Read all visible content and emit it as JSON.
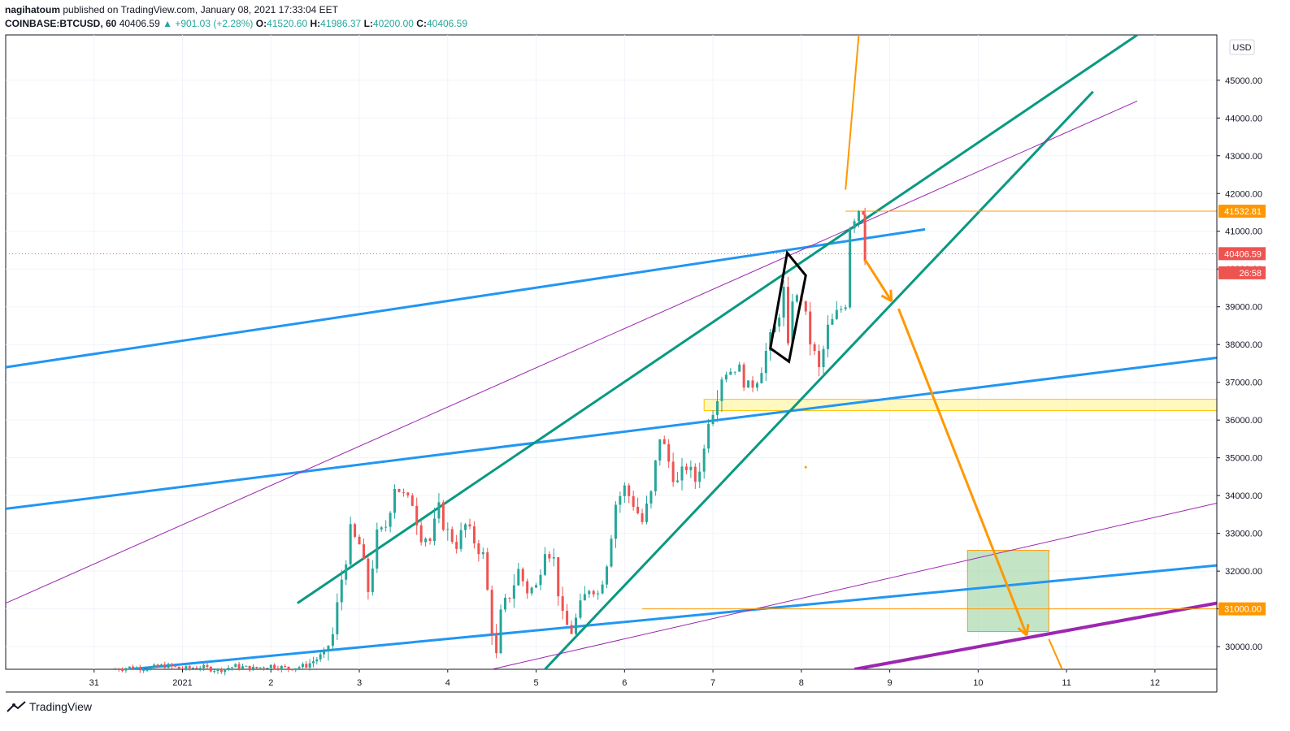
{
  "header": {
    "author": "nagihatoum",
    "published_text": "published on TradingView.com, January 08, 2021 17:33:04 EET",
    "symbol": "COINBASE:BTCUSD, 60",
    "last": "40406.59",
    "change": "▲ +901.03 (+2.28%)",
    "o_label": "O:",
    "o_value": "41520.60",
    "h_label": "H:",
    "h_value": "41986.37",
    "l_label": "L:",
    "l_value": "40200.00",
    "c_label": "C:",
    "c_value": "40406.59"
  },
  "footer": {
    "brand": "TradingView"
  },
  "colors": {
    "up": "#26a69a",
    "down": "#ef5350",
    "blue": "#2196f3",
    "teal": "#089981",
    "purple": "#9c27b0",
    "orange": "#ff9800",
    "zone_yellow": "#fff59d",
    "zone_green": "#a5d6a7"
  },
  "chart_data": {
    "type": "candlestick",
    "currency_label": "USD",
    "ylim": [
      29400,
      46200
    ],
    "yticks": [
      "30000.00",
      "31000.00",
      "32000.00",
      "33000.00",
      "34000.00",
      "35000.00",
      "36000.00",
      "37000.00",
      "38000.00",
      "39000.00",
      "40000.00",
      "41000.00",
      "42000.00",
      "43000.00",
      "44000.00",
      "45000.00"
    ],
    "xlim": [
      30.0,
      43.7
    ],
    "xticks": [
      {
        "x": 31,
        "label": "31"
      },
      {
        "x": 32,
        "label": "2021"
      },
      {
        "x": 33,
        "label": "2"
      },
      {
        "x": 34,
        "label": "3"
      },
      {
        "x": 35,
        "label": "4"
      },
      {
        "x": 36,
        "label": "5"
      },
      {
        "x": 37,
        "label": "6"
      },
      {
        "x": 38,
        "label": "7"
      },
      {
        "x": 39,
        "label": "8"
      },
      {
        "x": 40,
        "label": "9"
      },
      {
        "x": 41,
        "label": "10"
      },
      {
        "x": 42,
        "label": "11"
      },
      {
        "x": 43,
        "label": "12"
      }
    ],
    "price_badges": [
      {
        "label": "41532.81",
        "value": 41532.81,
        "color": "#ff9800"
      },
      {
        "label": "40406.59",
        "value": 40406.59,
        "color": "#ef5350"
      },
      {
        "label": "26:58",
        "value": 39900,
        "color": "#ef5350"
      },
      {
        "label": "31000.00",
        "value": 31000,
        "color": "#ff9800"
      }
    ],
    "last_price": 40406.59,
    "anchors": [
      {
        "x": 31.2,
        "y": 29390
      },
      {
        "x": 31.4,
        "y": 29450
      },
      {
        "x": 31.6,
        "y": 29420
      },
      {
        "x": 31.8,
        "y": 29500
      },
      {
        "x": 32.0,
        "y": 29410
      },
      {
        "x": 32.2,
        "y": 29460
      },
      {
        "x": 32.4,
        "y": 29380
      },
      {
        "x": 32.6,
        "y": 29480
      },
      {
        "x": 32.8,
        "y": 29420
      },
      {
        "x": 33.0,
        "y": 29500
      },
      {
        "x": 33.2,
        "y": 29420
      },
      {
        "x": 33.4,
        "y": 29500
      },
      {
        "x": 33.6,
        "y": 29800
      },
      {
        "x": 33.7,
        "y": 30300
      },
      {
        "x": 33.8,
        "y": 31800
      },
      {
        "x": 33.9,
        "y": 33000
      },
      {
        "x": 34.0,
        "y": 32700
      },
      {
        "x": 34.1,
        "y": 31500
      },
      {
        "x": 34.2,
        "y": 32900
      },
      {
        "x": 34.3,
        "y": 33200
      },
      {
        "x": 34.4,
        "y": 34300
      },
      {
        "x": 34.5,
        "y": 34000
      },
      {
        "x": 34.6,
        "y": 33800
      },
      {
        "x": 34.7,
        "y": 33000
      },
      {
        "x": 34.8,
        "y": 32800
      },
      {
        "x": 34.9,
        "y": 33600
      },
      {
        "x": 35.0,
        "y": 33000
      },
      {
        "x": 35.1,
        "y": 32700
      },
      {
        "x": 35.2,
        "y": 33200
      },
      {
        "x": 35.3,
        "y": 32800
      },
      {
        "x": 35.4,
        "y": 32400
      },
      {
        "x": 35.5,
        "y": 30500
      },
      {
        "x": 35.55,
        "y": 29700
      },
      {
        "x": 35.6,
        "y": 30800
      },
      {
        "x": 35.7,
        "y": 31400
      },
      {
        "x": 35.8,
        "y": 32000
      },
      {
        "x": 35.9,
        "y": 31500
      },
      {
        "x": 36.0,
        "y": 31600
      },
      {
        "x": 36.1,
        "y": 32700
      },
      {
        "x": 36.2,
        "y": 32300
      },
      {
        "x": 36.3,
        "y": 30700
      },
      {
        "x": 36.4,
        "y": 30400
      },
      {
        "x": 36.5,
        "y": 31000
      },
      {
        "x": 36.6,
        "y": 31600
      },
      {
        "x": 36.7,
        "y": 31400
      },
      {
        "x": 36.8,
        "y": 32300
      },
      {
        "x": 36.9,
        "y": 33800
      },
      {
        "x": 37.0,
        "y": 34200
      },
      {
        "x": 37.1,
        "y": 33800
      },
      {
        "x": 37.2,
        "y": 33300
      },
      {
        "x": 37.3,
        "y": 34000
      },
      {
        "x": 37.4,
        "y": 35600
      },
      {
        "x": 37.5,
        "y": 34900
      },
      {
        "x": 37.6,
        "y": 34300
      },
      {
        "x": 37.7,
        "y": 34800
      },
      {
        "x": 37.8,
        "y": 34400
      },
      {
        "x": 37.9,
        "y": 35200
      },
      {
        "x": 37.95,
        "y": 36100
      },
      {
        "x": 38.0,
        "y": 36300
      },
      {
        "x": 38.1,
        "y": 37200
      },
      {
        "x": 38.2,
        "y": 37300
      },
      {
        "x": 38.3,
        "y": 37400
      },
      {
        "x": 38.4,
        "y": 36800
      },
      {
        "x": 38.5,
        "y": 37100
      },
      {
        "x": 38.6,
        "y": 37800
      },
      {
        "x": 38.7,
        "y": 38400
      },
      {
        "x": 38.8,
        "y": 39400
      },
      {
        "x": 38.85,
        "y": 37800
      },
      {
        "x": 38.9,
        "y": 39300
      },
      {
        "x": 39.0,
        "y": 39200
      },
      {
        "x": 39.1,
        "y": 38100
      },
      {
        "x": 39.2,
        "y": 37300
      },
      {
        "x": 39.3,
        "y": 38400
      },
      {
        "x": 39.4,
        "y": 38800
      },
      {
        "x": 39.5,
        "y": 39100
      },
      {
        "x": 39.55,
        "y": 41200
      },
      {
        "x": 39.6,
        "y": 41400
      },
      {
        "x": 39.65,
        "y": 41600
      },
      {
        "x": 39.7,
        "y": 41520
      },
      {
        "x": 39.72,
        "y": 40406
      }
    ],
    "zones": [
      {
        "x1": 37.9,
        "x2": 43.7,
        "y1": 36250,
        "y2": 36550,
        "fill": "#fff59d",
        "stroke": "#ffc107"
      },
      {
        "x1": 40.88,
        "x2": 41.8,
        "y1": 30400,
        "y2": 32550,
        "fill": "#a5d6a7",
        "stroke": "#ff9800"
      }
    ],
    "trendlines": [
      {
        "x1": 30.0,
        "y1": 37400,
        "x2": 40.4,
        "y2": 41050,
        "color": "#2196f3",
        "width": 3
      },
      {
        "x1": 30.0,
        "y1": 33650,
        "x2": 43.7,
        "y2": 37650,
        "color": "#2196f3",
        "width": 3
      },
      {
        "x1": 31.4,
        "y1": 29400,
        "x2": 43.7,
        "y2": 32150,
        "color": "#2196f3",
        "width": 3
      },
      {
        "x1": 33.3,
        "y1": 31150,
        "x2": 42.8,
        "y2": 46200,
        "color": "#089981",
        "width": 3
      },
      {
        "x1": 36.1,
        "y1": 29400,
        "x2": 42.3,
        "y2": 44700,
        "color": "#089981",
        "width": 3
      },
      {
        "x1": 30.0,
        "y1": 31150,
        "x2": 42.8,
        "y2": 44450,
        "color": "#9c27b0",
        "width": 1
      },
      {
        "x1": 35.5,
        "y1": 29400,
        "x2": 43.7,
        "y2": 33800,
        "color": "#9c27b0",
        "width": 1
      },
      {
        "x1": 39.6,
        "y1": 29400,
        "x2": 43.7,
        "y2": 31150,
        "color": "#9c27b0",
        "width": 4
      },
      {
        "x1": 39.5,
        "y1": 42100,
        "x2": 39.65,
        "y2": 46200,
        "color": "#ff9800",
        "width": 2
      },
      {
        "x1": 41.8,
        "y1": 30200,
        "x2": 41.95,
        "y2": 29400,
        "color": "#ff9800",
        "width": 2
      },
      {
        "x1": 39.5,
        "y1": 41532.81,
        "x2": 43.7,
        "y2": 41532.81,
        "color": "#ff9800",
        "width": 1
      },
      {
        "x1": 37.2,
        "y1": 31000,
        "x2": 43.7,
        "y2": 31000,
        "color": "#ff9800",
        "width": 1
      }
    ],
    "arrows": [
      {
        "x1": 39.72,
        "y1": 40250,
        "x2": 40.02,
        "y2": 39150,
        "color": "#ff9800"
      },
      {
        "x1": 40.1,
        "y1": 38950,
        "x2": 41.55,
        "y2": 30300,
        "color": "#ff9800"
      }
    ],
    "diamond": [
      {
        "x": 38.65,
        "y": 37900
      },
      {
        "x": 38.84,
        "y": 40430
      },
      {
        "x": 39.05,
        "y": 39830
      },
      {
        "x": 38.86,
        "y": 37550
      }
    ],
    "dot": {
      "x": 39.05,
      "y": 34750,
      "color": "#ff9800"
    }
  }
}
